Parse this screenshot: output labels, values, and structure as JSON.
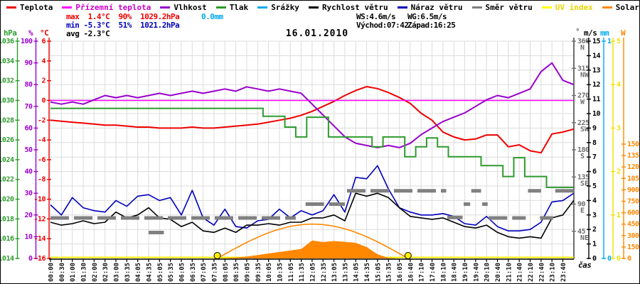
{
  "title": "16.01.2010",
  "legend": {
    "items": [
      {
        "label": "Teplota",
        "color": "#ee0000"
      },
      {
        "label": "Přízemní teplota",
        "color": "#ff00ff"
      },
      {
        "label": "Vlhkost",
        "color": "#9900cc"
      },
      {
        "label": "Tlak",
        "color": "#2e9b2e"
      },
      {
        "label": "Srážky",
        "color": "#00aaee"
      },
      {
        "label": "Rychlost větru",
        "color": "#000000"
      },
      {
        "label": "Náraz větru",
        "color": "#0000bb"
      },
      {
        "label": "Směr větru",
        "color": "#808080"
      },
      {
        "label": "UV index",
        "color": "#ffff00"
      },
      {
        "label": "Solar",
        "color": "#ff8800"
      }
    ]
  },
  "stats": {
    "max_row": "max  1.4°C  90%  1029.2hPa",
    "rain_total": "0.0mm",
    "min_row": "min -5.3°C  51%  1021.2hPa",
    "avg_row": "avg -2.3°C",
    "wind_speed": "WS:4.6m/s",
    "wind_gust": "WG:6.5m/s",
    "sunrise": "Východ:07:42",
    "sunset": "Západ:16:25"
  },
  "axis_headers": {
    "hpa": "hPa",
    "humidity": "%",
    "temp": "°C",
    "dir": "°",
    "wind": "m/s",
    "rain": "mm",
    "solar": "W",
    "time": "čas"
  },
  "chart_data": {
    "type": "line",
    "title": "16.01.2010",
    "xlabel": "čas",
    "grid": true,
    "x_tick_labels": [
      "00:00",
      "00:30",
      "01:00",
      "01:30",
      "02:00",
      "02:30",
      "03:00",
      "03:35",
      "04:05",
      "04:35",
      "05:05",
      "05:35",
      "06:05",
      "06:35",
      "07:05",
      "07:35",
      "08:05",
      "08:35",
      "09:05",
      "09:35",
      "10:05",
      "10:35",
      "11:05",
      "11:35",
      "12:05",
      "12:35",
      "13:05",
      "13:35",
      "14:05",
      "14:35",
      "15:05",
      "15:35",
      "16:05",
      "16:40",
      "17:10",
      "17:40",
      "18:10",
      "18:40",
      "19:10",
      "19:40",
      "20:10",
      "20:40",
      "21:10",
      "21:40",
      "22:10",
      "22:40",
      "23:10",
      "23:40"
    ],
    "axes": [
      {
        "id": "hPa",
        "side": "left",
        "color": "#2e9b2e",
        "min": 1014,
        "max": 1036,
        "ticks": [
          1036,
          1034,
          1032,
          1030,
          1028,
          1026,
          1024,
          1022,
          1020,
          1018,
          1016,
          1014
        ]
      },
      {
        "id": "humidity",
        "side": "left",
        "color": "#9900cc",
        "min": 0,
        "max": 100,
        "ticks": [
          100,
          90,
          80,
          70,
          60,
          50,
          40,
          30,
          20,
          10,
          0
        ]
      },
      {
        "id": "temp",
        "side": "left",
        "color": "#ee0000",
        "min": -16,
        "max": 6,
        "ticks": [
          6,
          4,
          2,
          0,
          -2,
          -4,
          -6,
          -8,
          -10,
          -12,
          -14,
          -16
        ]
      },
      {
        "id": "dir",
        "side": "right",
        "color": "#6e6e6e",
        "min": 0,
        "max": 360,
        "ticks": [
          360,
          315,
          270,
          225,
          180,
          135,
          90,
          45
        ],
        "tick_names": [
          "N",
          "NW",
          "W",
          "SW",
          "S",
          "SE",
          "E",
          "NE"
        ]
      },
      {
        "id": "wind",
        "side": "right",
        "color": "#000000",
        "min": 0,
        "max": 15,
        "ticks": [
          15,
          14,
          13,
          12,
          11,
          10,
          9,
          8,
          7,
          6,
          5,
          4,
          3,
          2,
          1,
          0
        ]
      },
      {
        "id": "rain",
        "side": "right",
        "color": "#00aaee",
        "min": 0,
        "max": 1,
        "ticks": [
          1,
          0
        ]
      },
      {
        "id": "uv",
        "side": "right",
        "color": "#f0e000",
        "min": 0,
        "max": 5,
        "ticks": [
          5,
          4,
          3,
          2,
          1,
          0
        ]
      },
      {
        "id": "solar",
        "side": "right",
        "color": "#ff8800",
        "min": 0,
        "max": 2850,
        "ticks": [
          1500,
          1350,
          1200,
          1050,
          900,
          750,
          600,
          450,
          300,
          150,
          0
        ]
      }
    ],
    "series": [
      {
        "name": "Teplota",
        "axis": "temp",
        "color": "#ee0000",
        "width": 2,
        "values": [
          -2.0,
          -2.1,
          -2.2,
          -2.3,
          -2.4,
          -2.5,
          -2.5,
          -2.6,
          -2.7,
          -2.7,
          -2.8,
          -2.8,
          -2.8,
          -2.7,
          -2.8,
          -2.8,
          -2.7,
          -2.6,
          -2.5,
          -2.4,
          -2.2,
          -2.0,
          -1.8,
          -1.5,
          -1.1,
          -0.6,
          -0.1,
          0.5,
          1.0,
          1.4,
          1.2,
          0.8,
          0.3,
          -0.3,
          -1.3,
          -2.0,
          -3.2,
          -3.7,
          -4.0,
          -3.9,
          -3.5,
          -3.5,
          -4.7,
          -4.5,
          -5.1,
          -5.3,
          -3.4,
          -3.2,
          -2.9
        ]
      },
      {
        "name": "Přízemní teplota",
        "axis": "temp",
        "color": "#ff00ff",
        "width": 1.5,
        "values": [
          0,
          0,
          0,
          0,
          0,
          0,
          0,
          0,
          0,
          0,
          0,
          0,
          0,
          0,
          0,
          0,
          0,
          0,
          0,
          0,
          0,
          0,
          0,
          0,
          0,
          0,
          0,
          0,
          0,
          0,
          0,
          0,
          0,
          0,
          0,
          0,
          0,
          0,
          0,
          0,
          0,
          0,
          0,
          0,
          0,
          0,
          0,
          0,
          0
        ]
      },
      {
        "name": "Vlhkost",
        "axis": "humidity",
        "color": "#9900cc",
        "width": 2,
        "values": [
          72,
          71,
          72,
          71,
          73,
          75,
          74,
          75,
          74,
          75,
          76,
          75,
          76,
          77,
          76,
          77,
          78,
          77,
          79,
          78,
          77,
          78,
          77,
          76,
          71,
          66,
          61,
          56,
          53,
          52,
          51,
          52,
          51,
          53,
          57,
          60,
          63,
          65,
          67,
          70,
          73,
          75,
          74,
          76,
          78,
          86,
          90,
          82,
          80
        ]
      },
      {
        "name": "Tlak",
        "axis": "hPa",
        "color": "#2e9b2e",
        "width": 2,
        "step": true,
        "values": [
          1029.2,
          1029.2,
          1029.2,
          1029.2,
          1029.2,
          1029.2,
          1029.2,
          1029.2,
          1029.2,
          1029.2,
          1029.2,
          1029.2,
          1029.2,
          1029.2,
          1029.2,
          1029.2,
          1029.2,
          1029.2,
          1029.2,
          1029.2,
          1028.4,
          1028.4,
          1027.3,
          1026.3,
          1028.3,
          1028.3,
          1026.3,
          1026.3,
          1026.3,
          1026.3,
          1025.3,
          1026.3,
          1026.3,
          1024.3,
          1025.3,
          1026.2,
          1025.3,
          1024.3,
          1024.3,
          1024.3,
          1023.4,
          1023.4,
          1022.3,
          1024.2,
          1022.3,
          1022.3,
          1021.2,
          1021.2,
          1021.2
        ]
      },
      {
        "name": "Srážky",
        "axis": "rain",
        "color": "#00aaee",
        "width": 2,
        "hidden": true,
        "values": [
          0,
          0,
          0,
          0,
          0,
          0,
          0,
          0,
          0,
          0,
          0,
          0,
          0,
          0,
          0,
          0,
          0,
          0,
          0,
          0,
          0,
          0,
          0,
          0,
          0,
          0,
          0,
          0,
          0,
          0,
          0,
          0,
          0,
          0,
          0,
          0,
          0,
          0,
          0,
          0,
          0,
          0,
          0,
          0,
          0,
          0,
          0,
          0,
          0
        ]
      },
      {
        "name": "Náraz větru",
        "axis": "wind",
        "color": "#0000bb",
        "width": 1.6,
        "values": [
          3.7,
          3.0,
          4.2,
          3.5,
          3.3,
          3.2,
          4.0,
          3.6,
          4.3,
          4.4,
          4.0,
          4.2,
          3.0,
          4.7,
          2.8,
          2.3,
          3.4,
          2.2,
          2.1,
          2.6,
          2.7,
          3.4,
          2.8,
          3.3,
          3.0,
          3.3,
          4.4,
          3.2,
          5.6,
          5.5,
          6.4,
          4.8,
          3.5,
          3.2,
          3.0,
          3.0,
          3.1,
          2.9,
          2.4,
          2.3,
          2.9,
          2.2,
          1.9,
          1.9,
          2.0,
          2.5,
          3.9,
          4.0,
          4.5
        ]
      },
      {
        "name": "Rychlost větru",
        "axis": "wind",
        "color": "#000000",
        "width": 1.6,
        "values": [
          2.5,
          2.3,
          2.4,
          2.6,
          2.4,
          2.5,
          3.2,
          2.8,
          3.0,
          3.5,
          2.8,
          2.7,
          2.2,
          2.5,
          1.9,
          1.8,
          2.1,
          1.8,
          2.3,
          2.3,
          2.4,
          2.3,
          2.5,
          2.5,
          2.8,
          2.8,
          3.0,
          2.6,
          4.5,
          4.3,
          4.5,
          4.2,
          3.5,
          2.9,
          2.8,
          2.7,
          2.8,
          2.5,
          2.2,
          2.1,
          2.3,
          1.8,
          1.5,
          1.4,
          1.5,
          1.4,
          2.8,
          3.0,
          4.0
        ]
      },
      {
        "name": "UV index",
        "axis": "uv",
        "color": "#ffee00",
        "width": 2,
        "values": [
          0,
          0,
          0,
          0,
          0,
          0,
          0,
          0,
          0,
          0,
          0,
          0,
          0,
          0,
          0,
          0,
          0,
          0,
          0,
          0,
          0,
          0,
          0,
          0,
          0,
          0,
          0,
          0,
          0,
          0,
          0,
          0,
          0,
          0,
          0,
          0,
          0,
          0,
          0,
          0,
          0,
          0,
          0,
          0,
          0,
          0,
          0,
          0,
          0
        ]
      },
      {
        "name": "Solar",
        "axis": "solar",
        "color": "#ff8800",
        "fill": true,
        "values": [
          0,
          0,
          0,
          0,
          0,
          0,
          0,
          0,
          0,
          0,
          0,
          0,
          0,
          0,
          0,
          0,
          5,
          12,
          25,
          45,
          65,
          85,
          105,
          125,
          235,
          215,
          228,
          218,
          205,
          150,
          55,
          8,
          0,
          0,
          0,
          0,
          0,
          0,
          0,
          0,
          0,
          0,
          0,
          0,
          0,
          0,
          0,
          0,
          0
        ]
      }
    ],
    "wind_direction_segments": [
      {
        "from": 0,
        "to": 22.5,
        "deg": 67
      },
      {
        "from": 9.0,
        "to": 10.4,
        "deg": 43
      },
      {
        "from": 23.4,
        "to": 27.0,
        "deg": 90
      },
      {
        "from": 27.2,
        "to": 36.3,
        "deg": 112
      },
      {
        "from": 36.4,
        "to": 37.8,
        "deg": 68
      },
      {
        "from": 37.9,
        "to": 38.5,
        "deg": 90
      },
      {
        "from": 38.6,
        "to": 39.5,
        "deg": 112
      },
      {
        "from": 39.6,
        "to": 40.1,
        "deg": 90
      },
      {
        "from": 40.2,
        "to": 43.6,
        "deg": 67
      },
      {
        "from": 43.8,
        "to": 45.0,
        "deg": 112
      },
      {
        "from": 44.9,
        "to": 46.1,
        "deg": 67
      },
      {
        "from": 46.3,
        "to": 48.0,
        "deg": 112
      }
    ],
    "solar_potential": {
      "start_tick": 15.3,
      "end_tick": 32.8,
      "peak_w": 450
    },
    "sun_markers": {
      "sunrise_tick": 15.3,
      "sunset_tick": 32.8,
      "color": "#ffee00"
    }
  }
}
